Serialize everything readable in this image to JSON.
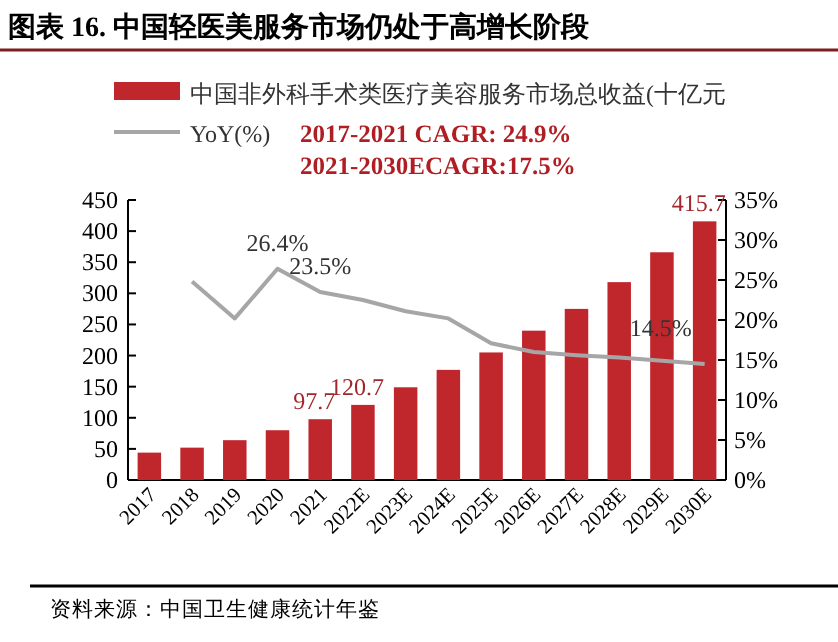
{
  "chart_data": {
    "type": "bar",
    "title": "图表 16. 中国轻医美服务市场仍处于高增长阶段",
    "categories": [
      "2017",
      "2018",
      "2019",
      "2020",
      "2021",
      "2022E",
      "2023E",
      "2024E",
      "2025E",
      "2026E",
      "2027E",
      "2028E",
      "2029E",
      "2030E"
    ],
    "series": [
      {
        "name": "中国非外科手术类医疗美容服务市场总收益(十亿元",
        "color": "#c0272d",
        "values": [
          44,
          52,
          64,
          80,
          97.7,
          120.7,
          149,
          177,
          205,
          240,
          275,
          318,
          366,
          415.7
        ],
        "value_labels": [
          null,
          null,
          null,
          null,
          "97.7",
          "120.7",
          null,
          null,
          null,
          null,
          null,
          null,
          null,
          "415.7"
        ]
      },
      {
        "name": "YoY(%)",
        "type": "line",
        "axis": "y2",
        "color": "#a6a6a6",
        "values": [
          null,
          24.8,
          20.2,
          26.4,
          23.5,
          22.5,
          21.1,
          20.2,
          17.1,
          16.0,
          15.6,
          15.3,
          14.9,
          14.5
        ],
        "value_labels": [
          null,
          null,
          null,
          "26.4%",
          "23.5%",
          null,
          null,
          null,
          null,
          null,
          null,
          null,
          null,
          "14.5%"
        ]
      }
    ],
    "ylim": [
      0,
      450
    ],
    "yticks": [
      0,
      50,
      100,
      150,
      200,
      250,
      300,
      350,
      400,
      450
    ],
    "y2lim": [
      0,
      35
    ],
    "y2ticks": [
      {
        "value": 0,
        "label": "0%"
      },
      {
        "value": 5,
        "label": "5%"
      },
      {
        "value": 10,
        "label": "10%"
      },
      {
        "value": 15,
        "label": "15%"
      },
      {
        "value": 20,
        "label": "20%"
      },
      {
        "value": 25,
        "label": "25%"
      },
      {
        "value": 30,
        "label": "30%"
      },
      {
        "value": 35,
        "label": "35%"
      }
    ],
    "legend": "top",
    "grid": false,
    "annotations": [
      "2017-2021 CAGR: 24.9%",
      "2021-2030ECAGR:17.5%",
      "资料来源：中国卫生健康统计年鉴"
    ]
  }
}
